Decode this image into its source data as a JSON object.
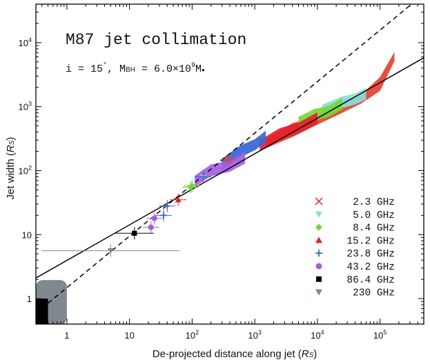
{
  "chart_data": {
    "type": "scatter",
    "title": "M87 jet collimation",
    "subtitle": {
      "prefix": "i = 15",
      "degree": "°",
      "mid": ", M",
      "mass_sub": "BH",
      "eq": " = 6.0×10",
      "exp": "9",
      "suffix": "M",
      "sun": "●"
    },
    "xlabel": {
      "text": "De-projected distance along jet (",
      "unit": "R",
      "unit_sub": "S",
      "close": ")"
    },
    "ylabel": {
      "text": "Jet width (",
      "unit": "R",
      "unit_sub": "S",
      "close": ")"
    },
    "x_scale": "log",
    "y_scale": "log",
    "xlim": [
      0.32,
      500000
    ],
    "ylim": [
      0.4,
      40000
    ],
    "x_ticks": [
      {
        "value": 1,
        "base": "1",
        "exp": ""
      },
      {
        "value": 10,
        "base": "10",
        "exp": ""
      },
      {
        "value": 100,
        "base": "10",
        "exp": "2"
      },
      {
        "value": 1000,
        "base": "10",
        "exp": "3"
      },
      {
        "value": 10000,
        "base": "10",
        "exp": "4"
      },
      {
        "value": 100000,
        "base": "10",
        "exp": "5"
      }
    ],
    "y_ticks": [
      {
        "value": 1,
        "base": "1",
        "exp": ""
      },
      {
        "value": 10,
        "base": "10",
        "exp": ""
      },
      {
        "value": 100,
        "base": "10",
        "exp": "2"
      },
      {
        "value": 1000,
        "base": "10",
        "exp": "3"
      },
      {
        "value": 10000,
        "base": "10",
        "exp": "4"
      }
    ],
    "fits": [
      {
        "name": "parabolic-fit",
        "style": "solid",
        "points": [
          [
            0.32,
            2.1
          ],
          [
            500000,
            5800
          ]
        ]
      },
      {
        "name": "conical-fit",
        "style": "dashed",
        "points": [
          [
            0.5,
            0.85
          ],
          [
            300000,
            38000
          ]
        ]
      }
    ],
    "shaded_regions": [
      {
        "name": "gray-region",
        "color": "#80898d",
        "x": [
          0.32,
          1.0
        ],
        "y": [
          0.4,
          1.95
        ]
      },
      {
        "name": "black-region",
        "color": "#000000",
        "x": [
          0.32,
          0.5
        ],
        "y": [
          0.4,
          1.0
        ]
      }
    ],
    "series": [
      {
        "name": "2.3 GHz",
        "marker": "x",
        "color": "#e8402a",
        "points": [
          [
            380,
            150
          ]
        ],
        "bands": [
          [
            [
              1500,
              260
            ],
            [
              4000,
              420
            ],
            [
              9000,
              580
            ],
            [
              20000,
              900
            ],
            [
              50000,
              1300
            ],
            [
              100000,
              2200
            ],
            [
              170000,
              6000
            ]
          ]
        ]
      },
      {
        "name": "5.0 GHz",
        "marker": "triangle-down",
        "color": "#84e0dd",
        "points": [
          [
            150,
            80
          ],
          [
            95,
            55
          ]
        ],
        "bands": [
          [
            [
              12000,
              900
            ],
            [
              25000,
              1100
            ],
            [
              40000,
              1350
            ],
            [
              60000,
              1500
            ]
          ]
        ]
      },
      {
        "name": "8.4 GHz",
        "marker": "diamond",
        "color": "#74d833",
        "points": [
          [
            100,
            58
          ],
          [
            95,
            55
          ]
        ],
        "bands": [
          [
            [
              5000,
              580
            ],
            [
              9000,
              700
            ],
            [
              15000,
              860
            ],
            [
              25000,
              1050
            ]
          ]
        ]
      },
      {
        "name": "15.2 GHz",
        "marker": "triangle-up",
        "color": "#e8202a",
        "points": [
          [
            60,
            35
          ]
        ],
        "bands": [
          [
            [
              1200,
              250
            ],
            [
              2500,
              350
            ],
            [
              5000,
              470
            ],
            [
              10000,
              620
            ]
          ]
        ]
      },
      {
        "name": "23.8 GHz",
        "marker": "plus",
        "color": "#3266d6",
        "points": [
          [
            40,
            28
          ],
          [
            35,
            20
          ],
          [
            150,
            80
          ]
        ],
        "bands": [
          [
            [
              300,
              130
            ],
            [
              600,
              190
            ],
            [
              1000,
              260
            ],
            [
              1500,
              320
            ]
          ]
        ]
      },
      {
        "name": "43.2 GHz",
        "marker": "circle",
        "color": "#a55ee0",
        "points": [
          [
            25,
            18
          ],
          [
            22,
            13
          ]
        ],
        "bands": [
          [
            [
              110,
              70
            ],
            [
              200,
              95
            ],
            [
              400,
              120
            ],
            [
              700,
              150
            ]
          ]
        ]
      },
      {
        "name": "86.4 GHz",
        "marker": "square",
        "color": "#000000",
        "points": [
          [
            12,
            10.5
          ]
        ]
      },
      {
        "name": "230 GHz",
        "marker": "triangle-down",
        "color": "#7f8b93",
        "points": [
          [
            5,
            5.6
          ]
        ]
      }
    ],
    "legend": {
      "placement": "bottom-right"
    }
  }
}
